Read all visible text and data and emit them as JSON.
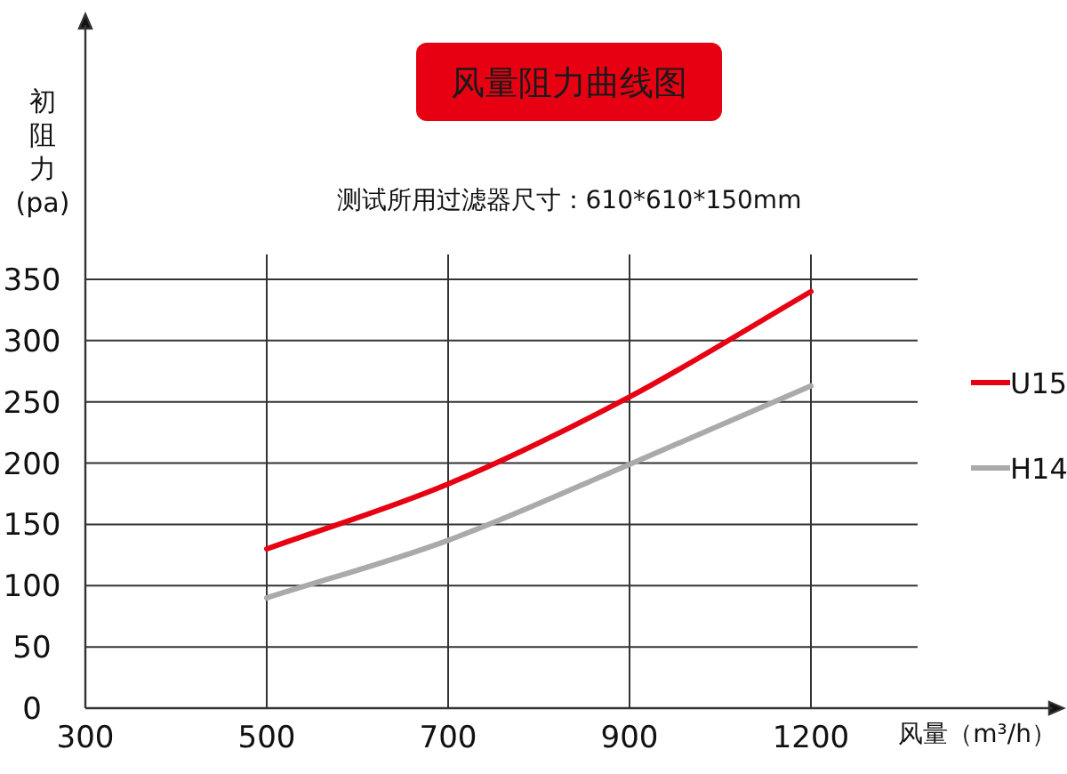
{
  "chart_data": {
    "type": "line",
    "title": "风量阻力曲线图",
    "subtitle": "测试所用过滤器尺寸：610*610*150mm",
    "xlabel": "风量（m³/h）",
    "ylabel": "初阻力(pa)",
    "categories": [
      "300",
      "500",
      "700",
      "900",
      "1200"
    ],
    "series": [
      {
        "name": "U15",
        "color": "#e60012",
        "values": [
          null,
          130,
          183,
          254,
          340
        ]
      },
      {
        "name": "H14",
        "color": "#aaaaaa",
        "values": [
          null,
          90,
          137,
          199,
          263
        ]
      }
    ],
    "ylim": [
      0,
      350
    ],
    "yticks": [
      0,
      50,
      100,
      150,
      200,
      250,
      300,
      350
    ],
    "grid": true,
    "legend": "right"
  }
}
